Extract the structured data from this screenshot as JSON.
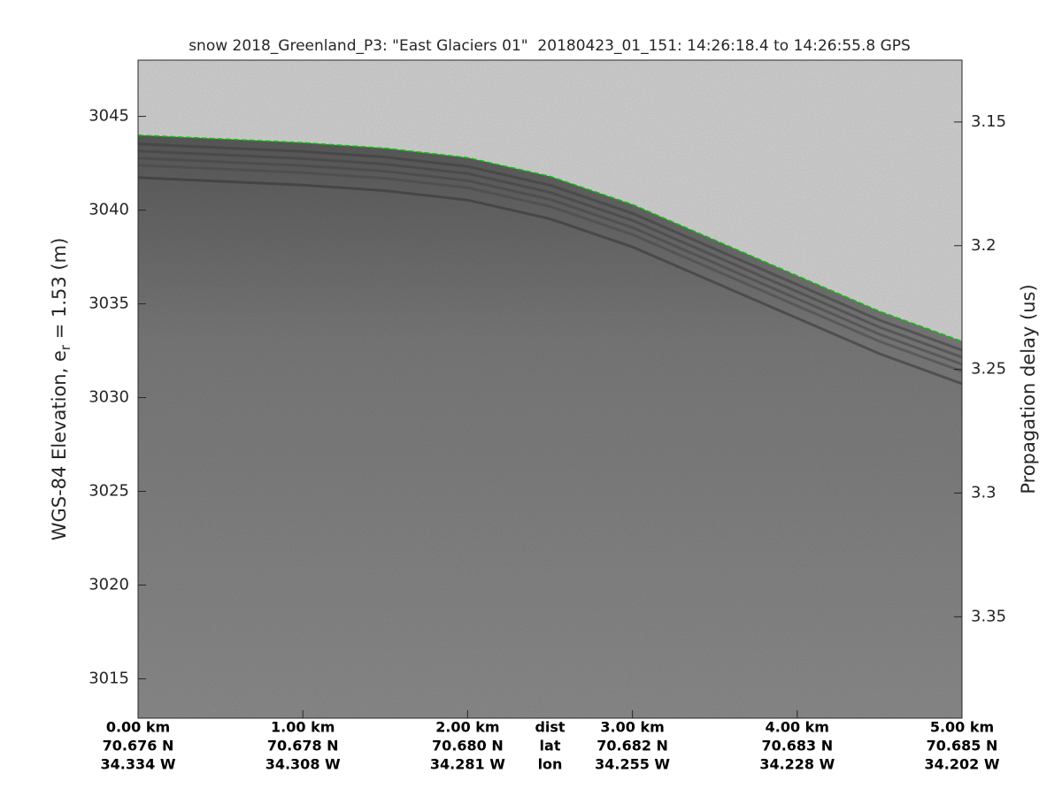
{
  "chart_data": {
    "type": "echogram",
    "title": "snow 2018_Greenland_P3: \"East Glaciers 01\"  20180423_01_151: 14:26:18.4 to 14:26:55.8 GPS",
    "ylabel": [
      "WGS-84 Elevation, e",
      "r",
      " = 1.53 (m)"
    ],
    "y2label": "Propagation delay (us)",
    "xlim": [
      0,
      5
    ],
    "xticks": [
      {
        "value": 0,
        "label": "0.00 km"
      },
      {
        "value": 1,
        "label": "1.00 km"
      },
      {
        "value": 2,
        "label": "2.00 km"
      },
      {
        "value": 3,
        "label": "3.00 km"
      },
      {
        "value": 4,
        "label": "4.00 km"
      },
      {
        "value": 5,
        "label": "5.00 km"
      }
    ],
    "xtick_lat": [
      "70.676 N",
      "70.678 N",
      "70.680 N",
      "70.682 N",
      "70.683 N",
      "70.685 N"
    ],
    "xtick_lon": [
      "34.334 W",
      "34.308 W",
      "34.281 W",
      "34.255 W",
      "34.228 W",
      "34.202 W"
    ],
    "xrow_labels": [
      "dist",
      "lat",
      "lon"
    ],
    "ylim": [
      3012.9,
      3048
    ],
    "yticks": [
      3015,
      3020,
      3025,
      3030,
      3035,
      3040,
      3045
    ],
    "y2lim": [
      3.391,
      3.125
    ],
    "y2ticks": [
      3.15,
      3.2,
      3.25,
      3.3,
      3.35
    ],
    "surface": {
      "color": "#00c800",
      "x": [
        0,
        0.5,
        1,
        1.5,
        2,
        2.5,
        3,
        3.5,
        4,
        4.5,
        5
      ],
      "values": [
        3044.0,
        3043.8,
        3043.6,
        3043.3,
        3042.8,
        3041.8,
        3040.3,
        3038.4,
        3036.5,
        3034.6,
        3033.0
      ]
    }
  }
}
